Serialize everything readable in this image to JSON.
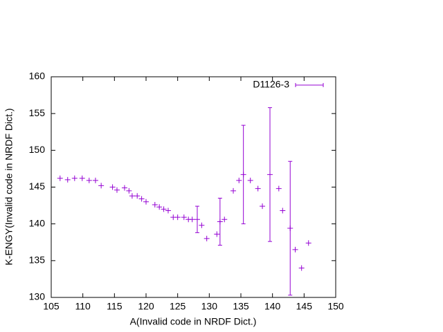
{
  "chart_data": {
    "type": "scatter",
    "xlabel": "A(Invalid code in NRDF Dict.)",
    "ylabel": "K-ENGY(Invalid code in NRDF Dict.)",
    "x": [
      106.4,
      107.6,
      108.7,
      109.9,
      111.0,
      112.0,
      112.9,
      114.7,
      115.4,
      116.6,
      117.3,
      117.8,
      118.6,
      119.3,
      120.0,
      121.4,
      122.1,
      122.8,
      123.5,
      124.3,
      125.0,
      126.0,
      126.7,
      127.3,
      128.1,
      128.8,
      129.6,
      131.2,
      131.7,
      132.4,
      133.8,
      134.7,
      135.4,
      136.5,
      137.7,
      138.4,
      139.6,
      141.0,
      141.6,
      142.8,
      143.6,
      144.6,
      145.7
    ],
    "series": [
      {
        "name": "D1126-3",
        "color": "#9400d3",
        "values": [
          146.2,
          146.0,
          146.2,
          146.2,
          145.9,
          145.9,
          145.2,
          145.0,
          144.6,
          144.9,
          144.5,
          143.8,
          143.8,
          143.4,
          143.0,
          142.6,
          142.3,
          142.0,
          141.8,
          140.9,
          140.9,
          140.9,
          140.6,
          140.6,
          140.6,
          139.8,
          138.0,
          138.6,
          140.3,
          140.6,
          144.5,
          145.9,
          146.7,
          145.9,
          144.8,
          142.4,
          146.7,
          144.8,
          141.8,
          139.4,
          136.5,
          134.0,
          137.4
        ],
        "errors": [
          null,
          null,
          null,
          null,
          null,
          null,
          null,
          null,
          null,
          null,
          null,
          null,
          null,
          null,
          null,
          null,
          null,
          null,
          null,
          null,
          null,
          null,
          null,
          null,
          1.8,
          null,
          null,
          null,
          3.2,
          null,
          null,
          null,
          6.7,
          null,
          null,
          null,
          9.1,
          null,
          null,
          9.1,
          null,
          null,
          null
        ]
      }
    ],
    "xlim": [
      105,
      150
    ],
    "xticks": [
      105,
      110,
      115,
      120,
      125,
      130,
      135,
      140,
      145,
      150
    ],
    "ylim": [
      130,
      160
    ],
    "yticks": [
      130,
      135,
      140,
      145,
      150,
      155,
      160
    ],
    "grid": false,
    "legend": "top-right"
  }
}
